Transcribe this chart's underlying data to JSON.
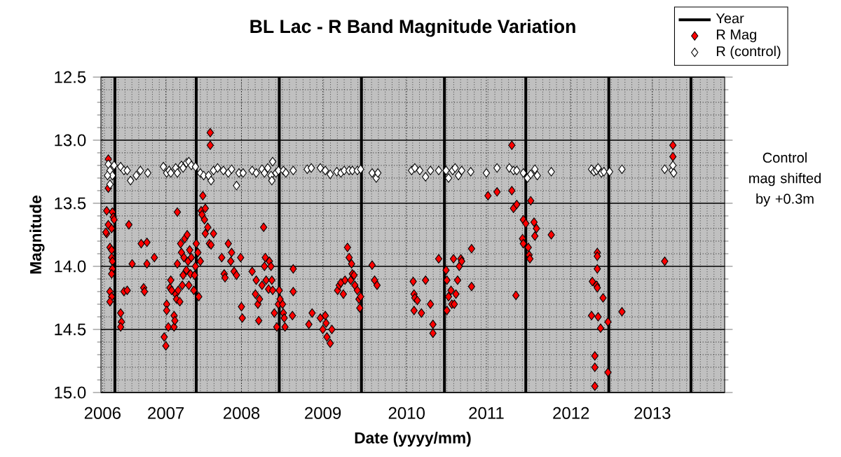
{
  "chart_data": {
    "type": "scatter",
    "title": "BL Lac - R Band Magnitude Variation",
    "xlabel": "Date (yyyy/mm)",
    "ylabel": "Magnitude",
    "xlim": [
      2006.29,
      2013.88
    ],
    "xticks": [
      {
        "value": 2006.31,
        "label": "2006"
      },
      {
        "value": 2007.08,
        "label": "2007"
      },
      {
        "value": 2008.0,
        "label": "2008"
      },
      {
        "value": 2008.99,
        "label": "2009"
      },
      {
        "value": 2010.01,
        "label": "2010"
      },
      {
        "value": 2010.98,
        "label": "2011"
      },
      {
        "value": 2012.01,
        "label": "2012"
      },
      {
        "value": 2013.0,
        "label": "2013"
      }
    ],
    "ylim": [
      15.0,
      12.5
    ],
    "yticks": [
      {
        "value": 12.5,
        "label": "12.5"
      },
      {
        "value": 13,
        "label": "13.0"
      },
      {
        "value": 13.5,
        "label": "13.5"
      },
      {
        "value": 14,
        "label": "14.0"
      },
      {
        "value": 14.5,
        "label": "14.5"
      },
      {
        "value": 15,
        "label": "15.0"
      }
    ],
    "grid": true,
    "legend": "top right",
    "annotations": [
      "Control mag shifted by +0.3m"
    ],
    "series": [
      {
        "name": "Year",
        "type": "line",
        "color": "#000000",
        "marker": "none",
        "x": [
          2006.46,
          2006.46,
          null,
          2007.45,
          2007.45,
          null,
          2008.46,
          2008.46,
          null,
          2009.46,
          2009.46,
          null,
          2010.47,
          2010.47,
          null,
          2011.46,
          2011.46,
          null,
          2012.47,
          2012.47,
          null,
          2013.47,
          2013.47
        ],
        "values": [
          15.0,
          12.5,
          null,
          15.0,
          12.5,
          null,
          15.0,
          12.5,
          null,
          15.0,
          12.5,
          null,
          15.0,
          12.5,
          null,
          15.0,
          12.5,
          null,
          15.0,
          12.5,
          null,
          15.0,
          12.5
        ]
      },
      {
        "name": "R Mag",
        "color": "#ff0000",
        "marker": "diamond",
        "x": [
          2006.38,
          2006.38,
          2006.36,
          2006.38,
          2006.36,
          2006.43,
          2006.44,
          2006.42,
          2006.4,
          2006.42,
          2006.42,
          2006.43,
          2006.43,
          2006.42,
          2006.4,
          2006.42,
          2006.4,
          2006.35,
          2006.45,
          2006.63,
          2006.57,
          2006.61,
          2006.53,
          2006.54,
          2006.53,
          2006.67,
          2006.78,
          2006.85,
          2006.81,
          2006.82,
          2006.85,
          2006.94,
          2007.06,
          2007.08,
          2007.09,
          2007.09,
          2007.11,
          2007.13,
          2007.14,
          2007.15,
          2007.18,
          2007.18,
          2007.19,
          2007.2,
          2007.21,
          2007.22,
          2007.22,
          2007.23,
          2007.25,
          2007.26,
          2007.27,
          2007.28,
          2007.29,
          2007.3,
          2007.31,
          2007.33,
          2007.34,
          2007.35,
          2007.36,
          2007.37,
          2007.38,
          2007.39,
          2007.42,
          2007.43,
          2007.44,
          2007.45,
          2007.47,
          2007.48,
          2007.5,
          2007.51,
          2007.52,
          2007.53,
          2007.55,
          2007.56,
          2007.56,
          2007.59,
          2007.61,
          2007.62,
          2007.62,
          2007.63,
          2007.66,
          2007.76,
          2007.79,
          2007.8,
          2007.84,
          2007.87,
          2007.88,
          2007.91,
          2007.94,
          2008.0,
          2008.01,
          2007.99,
          2008.13,
          2008.17,
          2008.18,
          2008.2,
          2008.22,
          2008.21,
          2008.25,
          2008.27,
          2008.28,
          2008.29,
          2008.3,
          2008.33,
          2008.34,
          2008.36,
          2008.37,
          2008.38,
          2008.4,
          2008.43,
          2008.45,
          2008.46,
          2008.5,
          2008.51,
          2008.52,
          2008.53,
          2008.47,
          2008.63,
          2008.63,
          2008.62,
          2008.82,
          2008.86,
          2008.96,
          2008.99,
          2009.02,
          2009.03,
          2009.04,
          2009.08,
          2009.1,
          2009.17,
          2009.19,
          2009.21,
          2009.24,
          2009.26,
          2009.29,
          2009.31,
          2009.33,
          2009.34,
          2009.35,
          2009.37,
          2009.38,
          2009.41,
          2009.43,
          2009.44,
          2009.45,
          2009.59,
          2009.62,
          2009.65,
          2010.09,
          2010.1,
          2010.11,
          2010.14,
          2010.1,
          2010.19,
          2010.24,
          2010.3,
          2010.33,
          2010.33,
          2010.4,
          2010.49,
          2010.5,
          2010.5,
          2010.52,
          2010.55,
          2010.56,
          2010.58,
          2010.59,
          2010.61,
          2010.63,
          2010.65,
          2010.67,
          2010.68,
          2010.8,
          2010.8,
          2011.0,
          2011.11,
          2011.29,
          2011.29,
          2011.31,
          2011.35,
          2011.52,
          2011.34,
          2011.43,
          2011.46,
          2011.56,
          2011.42,
          2011.43,
          2011.49,
          2011.5,
          2011.51,
          2011.57,
          2011.59,
          2011.77,
          2012.33,
          2012.33,
          2012.33,
          2012.27,
          2012.32,
          2012.33,
          2012.4,
          2012.26,
          2012.34,
          2012.37,
          2012.46,
          2012.63,
          2012.3,
          2012.3,
          2012.46,
          2012.3,
          2013.15,
          2013.25,
          2013.25
        ],
        "values": [
          13.15,
          13.38,
          13.56,
          13.67,
          13.74,
          13.57,
          13.61,
          13.7,
          13.85,
          13.87,
          13.93,
          13.96,
          14.02,
          14.06,
          14.2,
          14.24,
          14.28,
          13.73,
          13.63,
          13.67,
          14.2,
          14.19,
          14.37,
          14.44,
          14.48,
          13.98,
          13.82,
          13.81,
          14.17,
          14.2,
          13.98,
          13.93,
          14.56,
          14.63,
          14.3,
          14.35,
          14.48,
          14.17,
          14.11,
          14.19,
          14.39,
          14.48,
          14.43,
          14.22,
          14.26,
          13.57,
          13.98,
          14.19,
          14.28,
          13.82,
          13.89,
          14.15,
          14.07,
          13.93,
          13.78,
          14.03,
          13.75,
          13.96,
          14.15,
          13.87,
          14.06,
          13.93,
          14.19,
          14.07,
          14.0,
          13.82,
          13.89,
          14.24,
          13.96,
          13.56,
          13.59,
          13.44,
          13.63,
          13.54,
          13.74,
          13.69,
          13.82,
          12.94,
          13.04,
          13.83,
          13.74,
          13.93,
          14.06,
          14.09,
          13.82,
          13.96,
          13.89,
          14.04,
          14.07,
          14.32,
          14.41,
          13.93,
          14.04,
          14.22,
          14.11,
          14.3,
          14.26,
          14.43,
          14.15,
          13.69,
          14.0,
          13.93,
          14.11,
          14.18,
          13.96,
          14.0,
          14.11,
          14.19,
          14.37,
          14.48,
          14.3,
          14.19,
          14.3,
          14.37,
          14.41,
          14.48,
          14.26,
          14.02,
          14.2,
          14.39,
          14.46,
          14.37,
          14.41,
          14.5,
          14.39,
          14.45,
          14.56,
          14.61,
          14.5,
          14.19,
          14.15,
          14.13,
          14.22,
          14.11,
          13.85,
          13.93,
          14.11,
          13.98,
          14.06,
          14.07,
          14.15,
          14.19,
          14.26,
          14.33,
          14.24,
          13.99,
          14.11,
          14.15,
          14.12,
          14.22,
          14.25,
          14.27,
          14.35,
          14.37,
          14.11,
          14.3,
          14.46,
          14.53,
          13.94,
          14.03,
          14.11,
          14.35,
          14.24,
          14.19,
          14.3,
          13.94,
          14.3,
          14.22,
          14.11,
          14.0,
          13.94,
          13.96,
          13.86,
          14.16,
          13.44,
          13.41,
          13.04,
          13.4,
          13.54,
          13.51,
          13.48,
          14.23,
          13.63,
          13.66,
          13.65,
          13.78,
          13.82,
          13.85,
          13.91,
          13.94,
          13.76,
          13.7,
          13.75,
          13.89,
          13.92,
          14.02,
          14.12,
          14.15,
          14.17,
          14.25,
          14.39,
          14.4,
          14.49,
          14.44,
          14.36,
          14.71,
          14.8,
          14.84,
          14.95,
          13.96,
          13.04,
          13.13
        ]
      },
      {
        "name": "R (control)",
        "color": "#ffffff",
        "marker": "diamond",
        "x": [
          2006.38,
          2006.4,
          2006.43,
          2006.45,
          2006.4,
          2006.37,
          2006.53,
          2006.57,
          2006.61,
          2006.65,
          2006.72,
          2006.77,
          2006.86,
          2007.05,
          2007.09,
          2007.12,
          2007.14,
          2007.2,
          2007.22,
          2007.27,
          2007.29,
          2007.33,
          2007.36,
          2007.39,
          2007.44,
          2007.5,
          2007.54,
          2007.6,
          2007.63,
          2007.66,
          2007.71,
          2007.78,
          2007.84,
          2007.88,
          2007.94,
          2007.97,
          2008.02,
          2008.13,
          2008.18,
          2008.25,
          2008.28,
          2008.32,
          2008.36,
          2008.37,
          2008.38,
          2008.42,
          2008.45,
          2008.51,
          2008.54,
          2008.63,
          2008.8,
          2008.85,
          2008.96,
          2009.02,
          2009.08,
          2009.16,
          2009.21,
          2009.25,
          2009.31,
          2009.35,
          2009.41,
          2009.45,
          2009.59,
          2009.64,
          2009.66,
          2010.07,
          2010.11,
          2010.17,
          2010.24,
          2010.3,
          2010.4,
          2010.49,
          2010.52,
          2010.57,
          2010.6,
          2010.64,
          2010.68,
          2010.79,
          2010.98,
          2011.11,
          2011.26,
          2011.31,
          2011.35,
          2011.43,
          2011.48,
          2011.52,
          2011.57,
          2011.6,
          2011.77,
          2012.26,
          2012.29,
          2012.32,
          2012.34,
          2012.38,
          2012.41,
          2012.48,
          2012.63,
          2013.15,
          2013.24,
          2013.25,
          2013.26
        ],
        "values": [
          13.19,
          13.24,
          13.28,
          13.2,
          13.35,
          13.28,
          13.21,
          13.24,
          13.24,
          13.32,
          13.28,
          13.24,
          13.26,
          13.21,
          13.26,
          13.24,
          13.26,
          13.22,
          13.26,
          13.2,
          13.22,
          13.18,
          13.17,
          13.2,
          13.21,
          13.26,
          13.28,
          13.28,
          13.32,
          13.24,
          13.22,
          13.24,
          13.26,
          13.23,
          13.36,
          13.26,
          13.26,
          13.24,
          13.26,
          13.23,
          13.26,
          13.22,
          13.28,
          13.32,
          13.17,
          13.26,
          13.24,
          13.24,
          13.26,
          13.24,
          13.23,
          13.22,
          13.22,
          13.24,
          13.27,
          13.25,
          13.26,
          13.24,
          13.24,
          13.24,
          13.24,
          13.23,
          13.26,
          13.3,
          13.26,
          13.24,
          13.22,
          13.24,
          13.29,
          13.24,
          13.24,
          13.24,
          13.3,
          13.24,
          13.22,
          13.28,
          13.24,
          13.25,
          13.26,
          13.22,
          13.22,
          13.24,
          13.24,
          13.26,
          13.3,
          13.27,
          13.23,
          13.28,
          13.25,
          13.23,
          13.25,
          13.24,
          13.22,
          13.26,
          13.25,
          13.25,
          13.23,
          13.23,
          13.24,
          13.2,
          13.26
        ]
      }
    ]
  }
}
